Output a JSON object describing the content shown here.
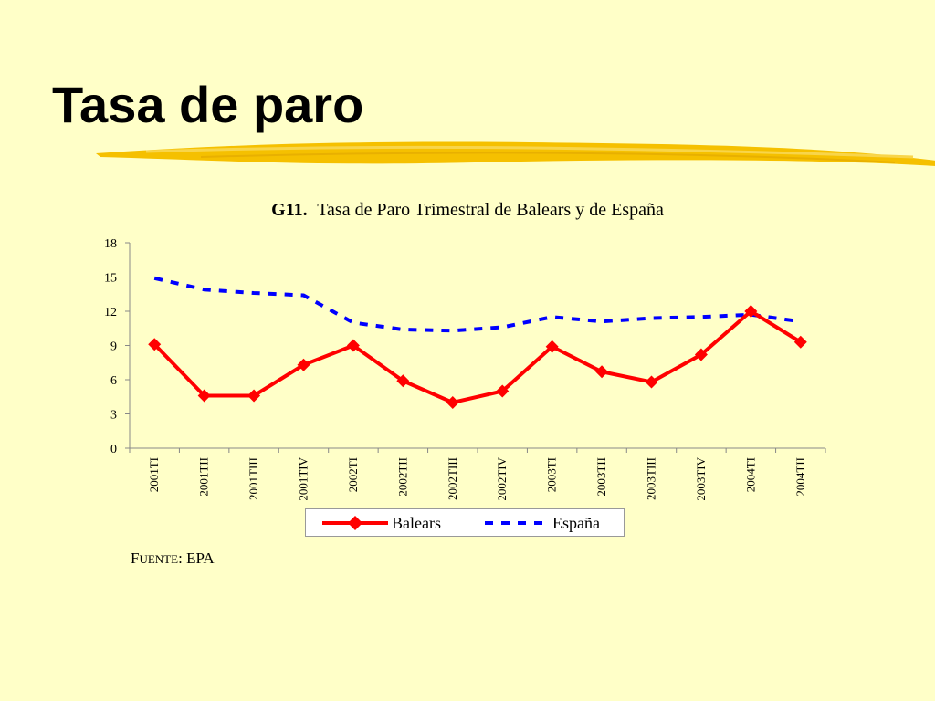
{
  "slide": {
    "title": "Tasa de paro",
    "source_label_first": "F",
    "source_label_rest": "UENTE",
    "source_colon": ":",
    "source_value": "EPA"
  },
  "colors": {
    "background": "#FFFFC8",
    "highlighter": "#F5C000",
    "baleares": "#FF0000",
    "espana": "#0000FF"
  },
  "chart_data": {
    "type": "line",
    "title_bold": "G11.",
    "title": "Tasa de Paro Trimestral de Balears y de España",
    "xlabel": "",
    "ylabel": "",
    "ylim": [
      0,
      18
    ],
    "yticks": [
      0,
      3,
      6,
      9,
      12,
      15,
      18
    ],
    "grid": false,
    "legend_position": "bottom",
    "categories": [
      "2001TI",
      "2001TII",
      "2001TIII",
      "2001TIV",
      "2002TI",
      "2002TII",
      "2002TIII",
      "2002TIV",
      "2003TI",
      "2003TII",
      "2003TIII",
      "2003TIV",
      "2004TI",
      "2004TII"
    ],
    "series": [
      {
        "name": "Balears",
        "color": "#FF0000",
        "style": "solid",
        "marker": "diamond",
        "values": [
          9.1,
          4.6,
          4.6,
          7.3,
          9.0,
          5.9,
          4.0,
          5.0,
          8.9,
          6.7,
          5.8,
          8.2,
          12.0,
          9.3
        ]
      },
      {
        "name": "España",
        "color": "#0000FF",
        "style": "dashed",
        "marker": "none",
        "values": [
          14.9,
          13.9,
          13.6,
          13.4,
          11.0,
          10.4,
          10.3,
          10.6,
          11.5,
          11.1,
          11.4,
          11.5,
          11.7,
          11.1
        ]
      }
    ]
  }
}
